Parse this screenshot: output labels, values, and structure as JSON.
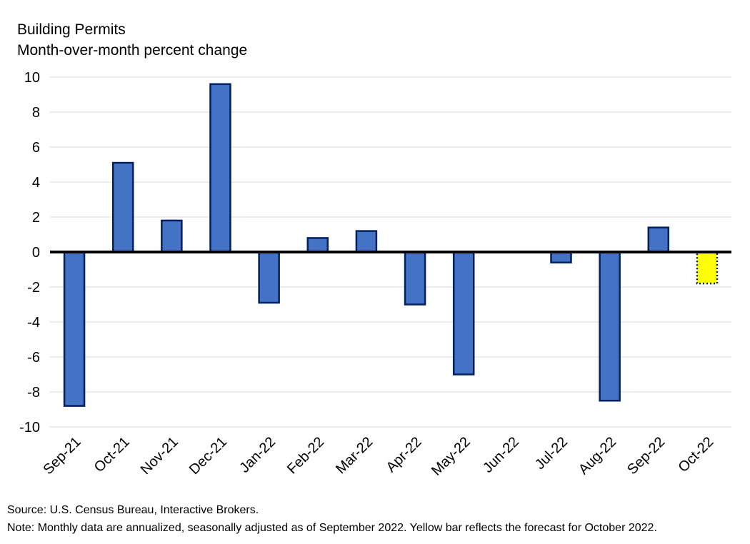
{
  "chart_data": {
    "type": "bar",
    "title": "Building Permits",
    "subtitle": "Month-over-month percent change",
    "xlabel": "",
    "ylabel": "",
    "ylim": [
      -10,
      10
    ],
    "yticks": [
      10,
      8,
      6,
      4,
      2,
      0,
      -2,
      -4,
      -6,
      -8,
      -10
    ],
    "grid": true,
    "categories": [
      "Sep-21",
      "Oct-21",
      "Nov-21",
      "Dec-21",
      "Jan-22",
      "Feb-22",
      "Mar-22",
      "Apr-22",
      "May-22",
      "Jun-22",
      "Jul-22",
      "Aug-22",
      "Sep-22",
      "Oct-22"
    ],
    "values": [
      -8.8,
      5.1,
      1.8,
      9.6,
      -2.9,
      0.8,
      1.2,
      -3.0,
      -7.0,
      0.0,
      -0.6,
      -8.5,
      1.4,
      -1.8
    ],
    "forecast_index": 13,
    "colors": {
      "bar_fill": "#4472C4",
      "bar_stroke": "#002060",
      "forecast_fill": "#FFFF00",
      "forecast_stroke": "#002060",
      "grid": "#D9D9D9",
      "zero_line": "#000000"
    }
  },
  "footer": {
    "source": "Source: U.S. Census Bureau, Interactive Brokers.",
    "note": "Note: Monthly data are annualized, seasonally adjusted as of September 2022. Yellow bar reflects the forecast for October 2022."
  }
}
